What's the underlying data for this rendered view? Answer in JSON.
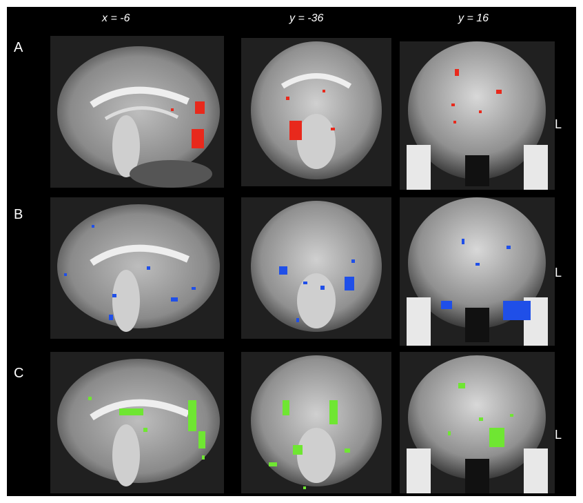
{
  "column_headers": [
    "x = -6",
    "y = -36",
    "y = 16"
  ],
  "row_labels": [
    "A",
    "B",
    "C"
  ],
  "side_label": "L",
  "colors": {
    "A": "#e8291c",
    "B": "#1f4fe8",
    "C": "#6fe632",
    "background": "#000000"
  },
  "panels": [
    {
      "row": "A",
      "view": "sagittal",
      "header": "x = -6"
    },
    {
      "row": "A",
      "view": "coronal",
      "header": "y = -36"
    },
    {
      "row": "A",
      "view": "coronal",
      "header": "y = 16"
    },
    {
      "row": "B",
      "view": "sagittal",
      "header": "x = -6"
    },
    {
      "row": "B",
      "view": "coronal",
      "header": "y = -36"
    },
    {
      "row": "B",
      "view": "coronal",
      "header": "y = 16"
    },
    {
      "row": "C",
      "view": "sagittal",
      "header": "x = -6"
    },
    {
      "row": "C",
      "view": "coronal",
      "header": "y = -36"
    },
    {
      "row": "C",
      "view": "coronal",
      "header": "y = 16"
    }
  ]
}
